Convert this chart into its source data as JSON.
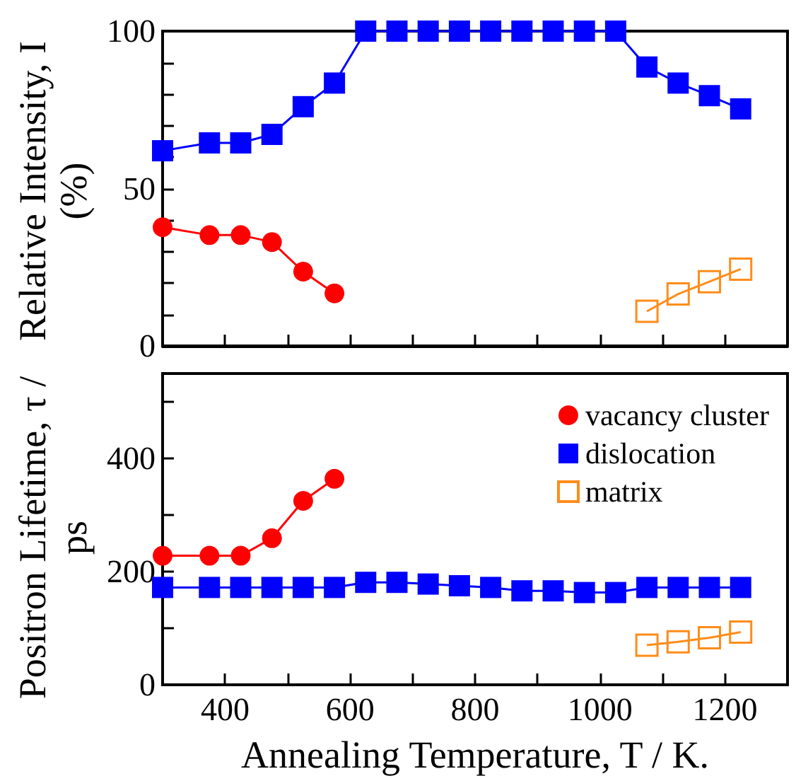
{
  "chart_data": [
    {
      "type": "line",
      "ylabel": "Relative Intensity, I (%)",
      "x": [
        300,
        375,
        425,
        475,
        525,
        575,
        625,
        675,
        725,
        775,
        825,
        875,
        925,
        975,
        1025,
        1075,
        1125,
        1175,
        1225
      ],
      "xlim": [
        300,
        1300
      ],
      "xticks": [
        {
          "value": 300,
          "label": null
        },
        400,
        {
          "value": 500,
          "label": null
        },
        600,
        {
          "value": 700,
          "label": null
        },
        800,
        {
          "value": 900,
          "label": null
        },
        1000,
        {
          "value": 1100,
          "label": null
        },
        1200
      ],
      "ylim": [
        0,
        100
      ],
      "yticks": [
        0,
        {
          "value": 10,
          "label": null
        },
        {
          "value": 20,
          "label": null
        },
        {
          "value": 30,
          "label": null
        },
        {
          "value": 40,
          "label": null
        },
        50,
        {
          "value": 60,
          "label": null
        },
        {
          "value": 70,
          "label": null
        },
        {
          "value": 80,
          "label": null
        },
        {
          "value": 90,
          "label": null
        },
        100
      ],
      "tick_labels": "y",
      "grid": false,
      "legend": false,
      "series": [
        {
          "color": "#ff0000",
          "marker": "circle",
          "values": [
            37.7,
            35.2,
            35.2,
            33,
            23.6,
            16.7,
            null,
            null,
            null,
            null,
            null,
            null,
            null,
            null,
            null,
            null,
            null,
            null,
            null
          ]
        },
        {
          "color": "#0000ff",
          "marker": "square",
          "values": [
            62,
            64.5,
            64.5,
            67.2,
            76,
            83.5,
            100,
            100,
            100,
            100,
            100,
            100,
            100,
            100,
            100,
            88.6,
            83.5,
            79.5,
            75.3
          ]
        },
        {
          "color": "#ff8c1a",
          "marker": "square",
          "values": [
            null,
            null,
            null,
            null,
            null,
            null,
            null,
            null,
            null,
            null,
            null,
            null,
            null,
            null,
            null,
            11,
            16.5,
            20.4,
            24.4
          ]
        }
      ]
    },
    {
      "type": "line",
      "xlabel": "Annealing Temperature, T / K.",
      "ylabel": "Positron Lifetime, τ / ps",
      "x": [
        300,
        375,
        425,
        475,
        525,
        575,
        625,
        675,
        725,
        775,
        825,
        875,
        925,
        975,
        1025,
        1075,
        1125,
        1175,
        1225
      ],
      "xlim": [
        300,
        1300
      ],
      "xticks": [
        {
          "value": 300,
          "label": null
        },
        400,
        {
          "value": 500,
          "label": null
        },
        600,
        {
          "value": 700,
          "label": null
        },
        800,
        {
          "value": 900,
          "label": null
        },
        1000,
        {
          "value": 1100,
          "label": null
        },
        1200
      ],
      "ylim": [
        0,
        550
      ],
      "yticks": [
        0,
        {
          "value": 100,
          "label": null
        },
        200,
        {
          "value": 300,
          "label": null
        },
        400,
        {
          "value": 500,
          "label": null
        }
      ],
      "grid": false,
      "legend": "top right",
      "series": [
        {
          "name": "vacancy cluster",
          "color": "#ff0000",
          "marker": "circle",
          "values": [
            228,
            228,
            228,
            259,
            325,
            364,
            null,
            null,
            null,
            null,
            null,
            null,
            null,
            null,
            null,
            null,
            null,
            null,
            null
          ]
        },
        {
          "name": "dislocation",
          "color": "#0000ff",
          "marker": "square",
          "values": [
            172,
            172,
            172,
            172,
            172,
            172,
            181,
            181,
            178,
            175,
            172,
            166,
            166,
            163,
            163,
            172,
            172,
            172,
            172
          ]
        },
        {
          "name": "matrix",
          "color": "#ff8c1a",
          "marker": "square",
          "values": [
            null,
            null,
            null,
            null,
            null,
            null,
            null,
            null,
            null,
            null,
            null,
            null,
            null,
            null,
            null,
            70,
            76,
            83,
            93
          ]
        }
      ]
    }
  ]
}
